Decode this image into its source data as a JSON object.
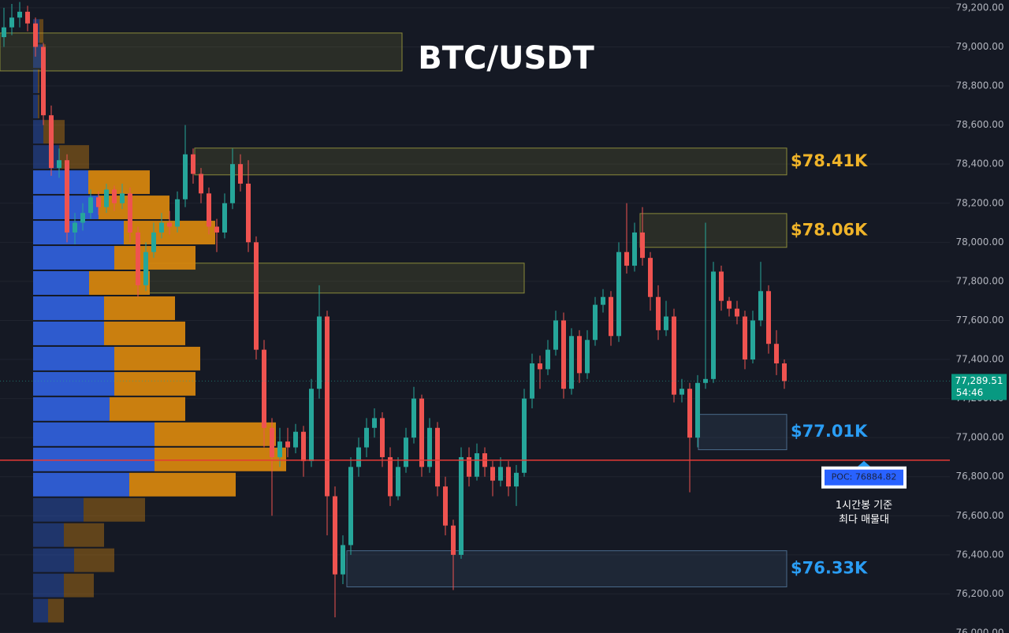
{
  "chart_data": {
    "type": "candlestick",
    "title": "BTC/USDT",
    "ylim": [
      76000,
      79240
    ],
    "yticks": [
      {
        "value": 76000,
        "label": "76,000.00"
      },
      {
        "value": 76200,
        "label": "76,200.00"
      },
      {
        "value": 76400,
        "label": "76,400.00"
      },
      {
        "value": 76600,
        "label": "76,600.00"
      },
      {
        "value": 76800,
        "label": "76,800.00"
      },
      {
        "value": 77000,
        "label": "77,000.00"
      },
      {
        "value": 77200,
        "label": "77,200.00"
      },
      {
        "value": 77400,
        "label": "77,400.00"
      },
      {
        "value": 77600,
        "label": "77,600.00"
      },
      {
        "value": 77800,
        "label": "77,800.00"
      },
      {
        "value": 78000,
        "label": "78,000.00"
      },
      {
        "value": 78200,
        "label": "78,200.00"
      },
      {
        "value": 78400,
        "label": "78,400.00"
      },
      {
        "value": 78600,
        "label": "78,600.00"
      },
      {
        "value": 78800,
        "label": "78,800.00"
      },
      {
        "value": 79000,
        "label": "79,000.00"
      },
      {
        "value": 79200,
        "label": "79,200.00"
      }
    ],
    "grid": true,
    "up_color": "#26a69a",
    "down_color": "#ef5350",
    "open": [
      79050,
      79100,
      79150,
      79180,
      79120,
      79000,
      78650,
      78380,
      78420,
      78050,
      78100,
      78150,
      78230,
      78180,
      78270,
      78200,
      78250,
      78050,
      77780,
      77950,
      78050,
      78100,
      78080,
      78220,
      78450,
      78350,
      78250,
      78080,
      78050,
      78200,
      78400,
      78300,
      78000,
      77450,
      77050,
      76900,
      76980,
      76950,
      77030,
      76880,
      77250,
      77620,
      76700,
      76300,
      76450,
      76850,
      76950,
      77050,
      77100,
      76900,
      76700,
      76850,
      77000,
      77200,
      76850,
      77050,
      76750,
      76550,
      76400,
      76900,
      76800,
      76920,
      76850,
      76780,
      76850,
      76750,
      76820,
      77200,
      77380,
      77350,
      77450,
      77600,
      77250,
      77520,
      77330,
      77500,
      77680,
      77720,
      77520,
      77950,
      77880,
      78050,
      77920,
      77720,
      77550,
      77620,
      77220,
      77250,
      77000,
      77280,
      77300,
      77850,
      77700,
      77660,
      77620,
      77400,
      77600,
      77750,
      77480,
      77380
    ],
    "high": [
      79200,
      79220,
      79230,
      79210,
      79150,
      79020,
      78700,
      78480,
      78450,
      78150,
      78200,
      78270,
      78260,
      78300,
      78290,
      78300,
      78280,
      78080,
      78000,
      78100,
      78150,
      78160,
      78260,
      78600,
      78480,
      78380,
      78280,
      78120,
      78250,
      78480,
      78450,
      78420,
      78030,
      77500,
      77100,
      77050,
      77050,
      77070,
      77060,
      77300,
      77780,
      77650,
      76750,
      76500,
      76900,
      77000,
      77100,
      77150,
      77130,
      76950,
      76900,
      77050,
      77260,
      77220,
      77100,
      77080,
      76800,
      76580,
      76950,
      76950,
      76970,
      76950,
      76880,
      76900,
      76880,
      76860,
      77250,
      77430,
      77420,
      77500,
      77650,
      77640,
      77560,
      77550,
      77550,
      77720,
      77760,
      77750,
      78000,
      78200,
      78100,
      78180,
      77950,
      77780,
      77700,
      77660,
      77300,
      77280,
      77320,
      78100,
      77900,
      77880,
      77720,
      77700,
      77650,
      77650,
      77900,
      77780,
      77550,
      77400
    ],
    "low": [
      79000,
      79060,
      79100,
      79080,
      78950,
      78600,
      78340,
      78330,
      78000,
      77990,
      78060,
      78120,
      78140,
      78150,
      78160,
      78170,
      78000,
      77720,
      77750,
      77920,
      78020,
      78040,
      78050,
      78180,
      78300,
      78200,
      78040,
      77950,
      78020,
      78170,
      78260,
      77950,
      77400,
      76950,
      76600,
      76850,
      76900,
      76920,
      76800,
      76850,
      77200,
      76500,
      76080,
      76250,
      76400,
      76800,
      76900,
      77000,
      76850,
      76650,
      76680,
      76820,
      76970,
      76800,
      76820,
      76700,
      76500,
      76220,
      76380,
      76750,
      76780,
      76800,
      76700,
      76750,
      76700,
      76650,
      76800,
      77150,
      77250,
      77320,
      77420,
      77200,
      77220,
      77280,
      77300,
      77470,
      77640,
      77470,
      77490,
      77840,
      77850,
      77880,
      77650,
      77500,
      77520,
      77180,
      77180,
      76720,
      76950,
      77250,
      77280,
      77650,
      77620,
      77580,
      77350,
      77380,
      77570,
      77430,
      77320,
      77250
    ],
    "close": [
      79100,
      79150,
      79180,
      79120,
      79000,
      78650,
      78380,
      78420,
      78050,
      78100,
      78150,
      78230,
      78180,
      78270,
      78200,
      78250,
      78050,
      77780,
      77950,
      78050,
      78100,
      78080,
      78220,
      78450,
      78350,
      78250,
      78080,
      78050,
      78200,
      78400,
      78300,
      78000,
      77450,
      77050,
      76900,
      76980,
      76950,
      77030,
      76880,
      77250,
      77620,
      76700,
      76300,
      76450,
      76850,
      76950,
      77050,
      77100,
      76900,
      76700,
      76850,
      77000,
      77200,
      76850,
      77050,
      76750,
      76550,
      76400,
      76900,
      76800,
      76920,
      76850,
      76780,
      76850,
      76750,
      76820,
      77200,
      77380,
      77350,
      77450,
      77600,
      77250,
      77520,
      77330,
      77500,
      77680,
      77720,
      77520,
      77950,
      77880,
      78050,
      77920,
      77720,
      77550,
      77620,
      77220,
      77250,
      77000,
      77280,
      77300,
      77850,
      77700,
      77660,
      77620,
      77400,
      77600,
      77750,
      77480,
      77380,
      77289.51
    ],
    "volume_profile": {
      "bins": [
        76050,
        76179,
        76308,
        76437,
        76566,
        76695,
        76824,
        76953,
        77082,
        77211,
        77340,
        77469,
        77598,
        77727,
        77856,
        77985,
        78114,
        78243,
        78372,
        78501,
        78630,
        78759,
        78888,
        79017,
        79146
      ],
      "buy": [
        19,
        39,
        52,
        39,
        64,
        122,
        154,
        154,
        97,
        103,
        103,
        90,
        90,
        71,
        103,
        115,
        83,
        70,
        33,
        13,
        6,
        6,
        13,
        8
      ],
      "sell": [
        20,
        38,
        51,
        51,
        78,
        135,
        167,
        154,
        96,
        103,
        109,
        103,
        90,
        77,
        103,
        116,
        90,
        78,
        38,
        27,
        2,
        2,
        3,
        5
      ],
      "buy_color": "#2f5fd8",
      "sell_color": "#d4850f",
      "value_area": [
        76695,
        78372
      ]
    },
    "zones": [
      {
        "top": 79071,
        "bottom": 78877,
        "color": "#8a8a3a"
      },
      {
        "top": 78482,
        "bottom": 78345,
        "color": "#8a8a3a",
        "label": "$78.41K",
        "label_color": "#f0b429"
      },
      {
        "top": 78147,
        "bottom": 77974,
        "color": "#8a8a3a",
        "label": "$78.06K",
        "label_color": "#f0b429"
      },
      {
        "top": 77893,
        "bottom": 77740,
        "color": "#8a8a3a"
      },
      {
        "top": 77119,
        "bottom": 76938,
        "color": "#4a6a8a",
        "label": "$77.01K",
        "label_color": "#2a9df4"
      },
      {
        "top": 76421,
        "bottom": 76236,
        "color": "#4a6a8a",
        "label": "$76.33K",
        "label_color": "#2a9df4"
      }
    ],
    "poc": {
      "value": 76884.82,
      "label": "POC: 76884.82",
      "color": "#e53935"
    },
    "poc_note": [
      "1시간봉 기준",
      "최다 매물대"
    ],
    "last_price": {
      "value": 77289.51,
      "label": "77,289.51"
    },
    "countdown": "54:46"
  }
}
